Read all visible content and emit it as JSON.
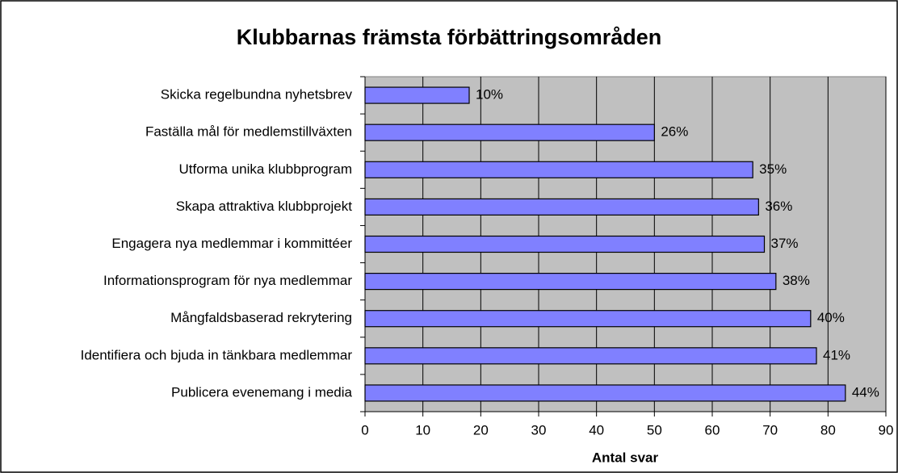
{
  "chart_data": {
    "type": "bar",
    "orientation": "horizontal",
    "title": "Klubbarnas främsta förbättringsområden",
    "x_label": "Antal svar",
    "categories": [
      "Skicka regelbundna nyhetsbrev",
      "Faställa mål för medlemstillväxten",
      "Utforma unika klubbprogram",
      "Skapa attraktiva klubbprojekt",
      "Engagera nya medlemmar i kommittéer",
      "Informationsprogram för nya medlemmar",
      "Mångfaldsbaserad rekrytering",
      "Identifiera och bjuda in tänkbara medlemmar",
      "Publicera evenemang i media"
    ],
    "values": [
      18,
      50,
      67,
      68,
      69,
      71,
      77,
      78,
      83
    ],
    "percent_labels": [
      "10%",
      "26%",
      "35%",
      "36%",
      "37%",
      "38%",
      "40%",
      "41%",
      "44%"
    ],
    "color": "#8080ff",
    "xlim": [
      0,
      90
    ],
    "xticks": [
      0,
      10,
      20,
      30,
      40,
      50,
      60,
      70,
      80,
      90
    ],
    "grid": true
  }
}
